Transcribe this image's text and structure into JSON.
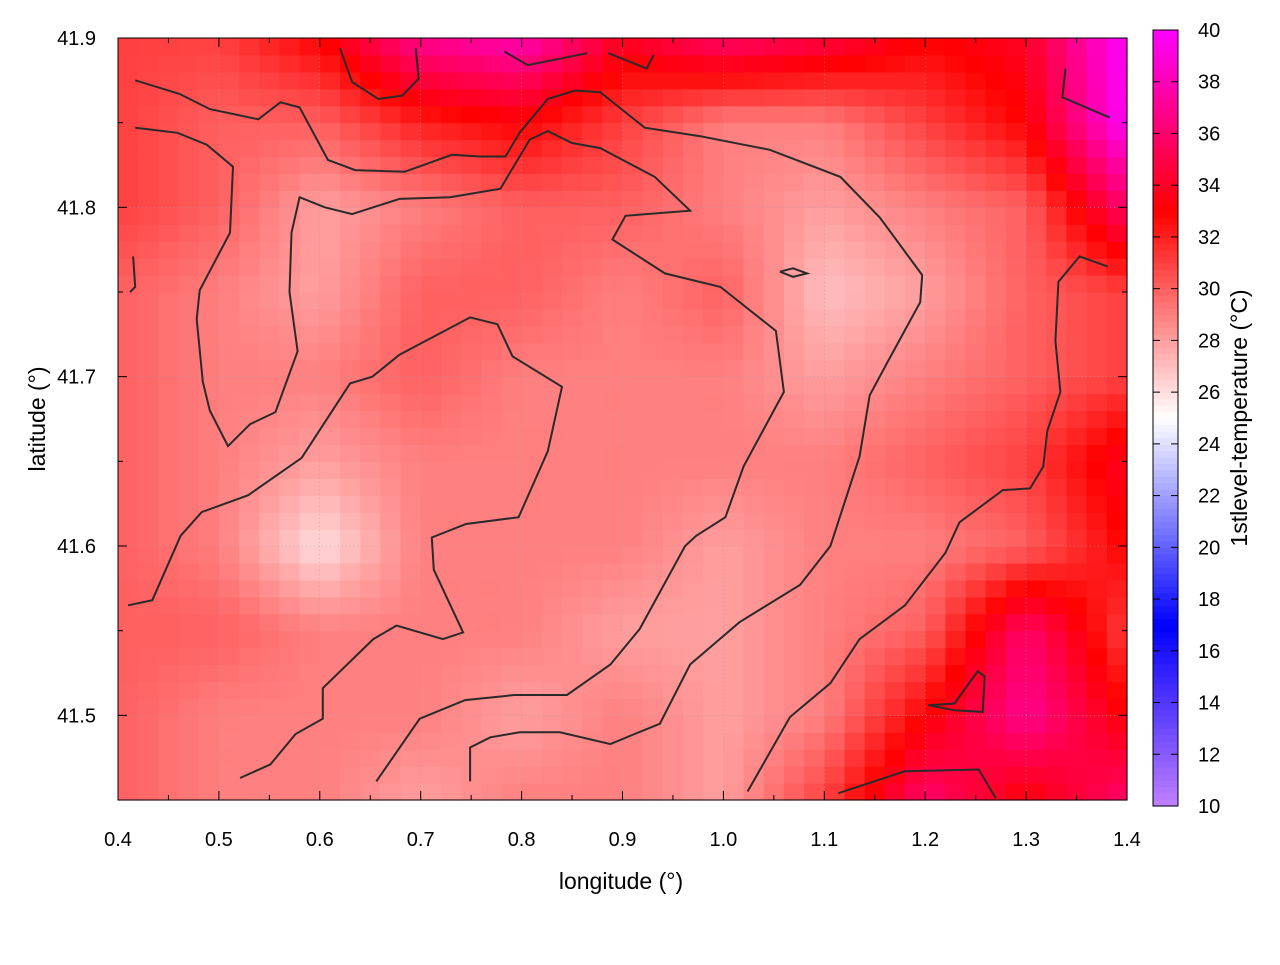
{
  "chart_data": {
    "type": "heatmap",
    "xlabel": "longitude (°)",
    "ylabel": "latitude (°)",
    "colorbar_label": "1stlevel-temperature (°C)",
    "xlim": [
      0.4,
      1.4
    ],
    "ylim": [
      41.45,
      41.9
    ],
    "xticks": [
      "0.4",
      "0.5",
      "0.6",
      "0.7",
      "0.8",
      "0.9",
      "1.0",
      "1.1",
      "1.2",
      "1.3",
      "1.4"
    ],
    "yticks": [
      "41.5",
      "41.6",
      "41.7",
      "41.8",
      "41.9"
    ],
    "cbticks": [
      "10",
      "12",
      "14",
      "16",
      "18",
      "20",
      "22",
      "24",
      "26",
      "28",
      "30",
      "32",
      "34",
      "36",
      "38",
      "40"
    ],
    "cblim": [
      10,
      40
    ],
    "grid": true,
    "colormap": [
      [
        10,
        "#c080ff"
      ],
      [
        17,
        "#0000ff"
      ],
      [
        25,
        "#ffffff"
      ],
      [
        33,
        "#ff0000"
      ],
      [
        40,
        "#ff00ff"
      ]
    ],
    "contour_color": "#2a2a2a",
    "grid_lon": [
      0.4,
      0.5,
      0.6,
      0.7,
      0.8,
      0.9,
      1.0,
      1.1,
      1.2,
      1.3,
      1.4
    ],
    "grid_lat": [
      41.9,
      41.85,
      41.8,
      41.75,
      41.7,
      41.65,
      41.6,
      41.55,
      41.5,
      41.45
    ],
    "temperature": [
      [
        31,
        31,
        33,
        37,
        38,
        34,
        36,
        35,
        33,
        34,
        40
      ],
      [
        31,
        30,
        30,
        32,
        33,
        31,
        29,
        29,
        31,
        33,
        40
      ],
      [
        31,
        30,
        28,
        29,
        30,
        30,
        29,
        28,
        29,
        30,
        36
      ],
      [
        30,
        29,
        28,
        30,
        30,
        29,
        30,
        27,
        28,
        30,
        31
      ],
      [
        30,
        29,
        29,
        30,
        29,
        29,
        29,
        28,
        29,
        30,
        31
      ],
      [
        30,
        29,
        28,
        29,
        29,
        29,
        29,
        29,
        30,
        31,
        34
      ],
      [
        30,
        29,
        26,
        29,
        29,
        29,
        28,
        29,
        29,
        30,
        33
      ],
      [
        30,
        30,
        29,
        29,
        29,
        28,
        28,
        29,
        30,
        36,
        31
      ],
      [
        30,
        29,
        29,
        29,
        28,
        29,
        28,
        29,
        33,
        37,
        33
      ],
      [
        30,
        29,
        29,
        28,
        29,
        29,
        28,
        31,
        36,
        33,
        36
      ]
    ],
    "contours": [
      [
        [
          0.41,
          41.565
        ],
        [
          0.434,
          41.568
        ],
        [
          0.462,
          41.606
        ],
        [
          0.483,
          41.62
        ],
        [
          0.529,
          41.63
        ],
        [
          0.582,
          41.652
        ],
        [
          0.63,
          41.696
        ],
        [
          0.652,
          41.7
        ],
        [
          0.679,
          41.713
        ],
        [
          0.749,
          41.735
        ],
        [
          0.776,
          41.731
        ],
        [
          0.791,
          41.712
        ],
        [
          0.84,
          41.694
        ],
        [
          0.826,
          41.656
        ],
        [
          0.797,
          41.617
        ],
        [
          0.745,
          41.613
        ],
        [
          0.711,
          41.605
        ],
        [
          0.713,
          41.586
        ],
        [
          0.742,
          41.549
        ],
        [
          0.722,
          41.545
        ],
        [
          0.676,
          41.553
        ],
        [
          0.653,
          41.545
        ],
        [
          0.603,
          41.516
        ],
        [
          0.603,
          41.498
        ],
        [
          0.576,
          41.489
        ],
        [
          0.551,
          41.471
        ],
        [
          0.521,
          41.463
        ]
      ],
      [
        [
          0.656,
          41.461
        ],
        [
          0.699,
          41.498
        ],
        [
          0.744,
          41.509
        ],
        [
          0.793,
          41.512
        ],
        [
          0.845,
          41.512
        ],
        [
          0.888,
          41.53
        ],
        [
          0.917,
          41.551
        ],
        [
          0.962,
          41.6
        ],
        [
          0.973,
          41.606
        ],
        [
          1.002,
          41.617
        ],
        [
          1.02,
          41.647
        ],
        [
          1.06,
          41.691
        ],
        [
          1.052,
          41.727
        ],
        [
          0.997,
          41.753
        ],
        [
          0.942,
          41.761
        ],
        [
          0.89,
          41.781
        ],
        [
          0.903,
          41.795
        ],
        [
          0.967,
          41.798
        ],
        [
          0.932,
          41.818
        ],
        [
          0.878,
          41.835
        ],
        [
          0.85,
          41.838
        ],
        [
          0.826,
          41.845
        ],
        [
          0.808,
          41.84
        ],
        [
          0.779,
          41.811
        ],
        [
          0.729,
          41.806
        ],
        [
          0.679,
          41.805
        ],
        [
          0.632,
          41.796
        ],
        [
          0.605,
          41.8
        ],
        [
          0.58,
          41.806
        ],
        [
          0.572,
          41.785
        ],
        [
          0.57,
          41.75
        ],
        [
          0.578,
          41.715
        ],
        [
          0.567,
          41.697
        ],
        [
          0.556,
          41.679
        ],
        [
          0.531,
          41.672
        ],
        [
          0.509,
          41.659
        ],
        [
          0.491,
          41.68
        ],
        [
          0.484,
          41.697
        ],
        [
          0.478,
          41.734
        ],
        [
          0.481,
          41.751
        ],
        [
          0.511,
          41.785
        ],
        [
          0.514,
          41.824
        ],
        [
          0.488,
          41.837
        ],
        [
          0.459,
          41.844
        ],
        [
          0.417,
          41.847
        ]
      ],
      [
        [
          0.749,
          41.461
        ],
        [
          0.749,
          41.481
        ],
        [
          0.769,
          41.487
        ],
        [
          0.798,
          41.49
        ],
        [
          0.838,
          41.49
        ],
        [
          0.888,
          41.483
        ],
        [
          0.912,
          41.489
        ],
        [
          0.937,
          41.495
        ],
        [
          0.967,
          41.53
        ],
        [
          1.016,
          41.555
        ],
        [
          1.076,
          41.577
        ],
        [
          1.106,
          41.6
        ],
        [
          1.135,
          41.653
        ],
        [
          1.145,
          41.689
        ],
        [
          1.163,
          41.709
        ],
        [
          1.195,
          41.744
        ],
        [
          1.197,
          41.76
        ],
        [
          1.155,
          41.794
        ],
        [
          1.116,
          41.818
        ],
        [
          1.046,
          41.834
        ],
        [
          0.977,
          41.842
        ],
        [
          0.922,
          41.847
        ],
        [
          0.878,
          41.868
        ],
        [
          0.853,
          41.869
        ],
        [
          0.826,
          41.864
        ],
        [
          0.798,
          41.844
        ],
        [
          0.784,
          41.83
        ],
        [
          0.759,
          41.83
        ],
        [
          0.731,
          41.831
        ],
        [
          0.684,
          41.821
        ],
        [
          0.635,
          41.822
        ],
        [
          0.608,
          41.828
        ],
        [
          0.58,
          41.859
        ],
        [
          0.561,
          41.862
        ],
        [
          0.539,
          41.852
        ],
        [
          0.491,
          41.858
        ],
        [
          0.461,
          41.867
        ],
        [
          0.417,
          41.875
        ]
      ],
      [
        [
          1.024,
          41.455
        ],
        [
          1.066,
          41.499
        ],
        [
          1.106,
          41.519
        ],
        [
          1.135,
          41.545
        ],
        [
          1.18,
          41.565
        ],
        [
          1.22,
          41.596
        ],
        [
          1.234,
          41.614
        ],
        [
          1.277,
          41.633
        ],
        [
          1.304,
          41.634
        ],
        [
          1.317,
          41.647
        ],
        [
          1.321,
          41.668
        ],
        [
          1.334,
          41.691
        ],
        [
          1.329,
          41.721
        ],
        [
          1.332,
          41.756
        ],
        [
          1.353,
          41.771
        ],
        [
          1.381,
          41.765
        ]
      ],
      [
        [
          1.114,
          41.454
        ],
        [
          1.18,
          41.467
        ],
        [
          1.253,
          41.468
        ],
        [
          1.27,
          41.451
        ]
      ],
      [
        [
          1.203,
          41.506
        ],
        [
          1.229,
          41.507
        ],
        [
          1.252,
          41.526
        ],
        [
          1.259,
          41.523
        ],
        [
          1.257,
          41.502
        ],
        [
          1.229,
          41.503
        ],
        [
          1.203,
          41.506
        ]
      ],
      [
        [
          1.056,
          41.762
        ],
        [
          1.069,
          41.764
        ],
        [
          1.083,
          41.761
        ],
        [
          1.069,
          41.759
        ],
        [
          1.056,
          41.762
        ]
      ],
      [
        [
          0.62,
          41.894
        ],
        [
          0.632,
          41.874
        ],
        [
          0.658,
          41.864
        ],
        [
          0.682,
          41.866
        ],
        [
          0.698,
          41.876
        ],
        [
          0.695,
          41.894
        ]
      ],
      [
        [
          0.783,
          41.892
        ],
        [
          0.806,
          41.884
        ],
        [
          0.865,
          41.891
        ]
      ],
      [
        [
          0.886,
          41.891
        ],
        [
          0.924,
          41.882
        ],
        [
          0.931,
          41.89
        ]
      ],
      [
        [
          1.339,
          41.882
        ],
        [
          1.336,
          41.865
        ],
        [
          1.383,
          41.853
        ]
      ],
      [
        [
          0.415,
          41.771
        ],
        [
          0.417,
          41.753
        ],
        [
          0.412,
          41.75
        ]
      ]
    ]
  }
}
